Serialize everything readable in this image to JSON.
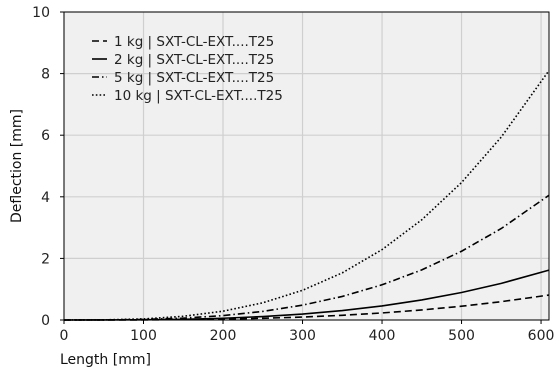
{
  "chart_data": {
    "type": "line",
    "title": "",
    "xlabel": "Length [mm]",
    "ylabel": "Deflection [mm]",
    "xlim": [
      0,
      610
    ],
    "ylim": [
      0,
      10
    ],
    "xticks": [
      0,
      100,
      200,
      300,
      400,
      500,
      600
    ],
    "yticks": [
      0,
      2,
      4,
      6,
      8,
      10
    ],
    "grid": true,
    "legend_position": "top-left",
    "x": [
      0,
      50,
      100,
      150,
      200,
      250,
      300,
      350,
      400,
      450,
      500,
      550,
      610
    ],
    "series": [
      {
        "name": "1 kg | SXT-CL-EXT....T25",
        "line_style": "dashed",
        "values": [
          0,
          0.0005,
          0.004,
          0.012,
          0.029,
          0.056,
          0.096,
          0.153,
          0.229,
          0.326,
          0.447,
          0.595,
          0.81
        ]
      },
      {
        "name": "2 kg | SXT-CL-EXT....T25",
        "line_style": "solid",
        "values": [
          0,
          0.0009,
          0.007,
          0.024,
          0.057,
          0.112,
          0.193,
          0.306,
          0.457,
          0.651,
          0.893,
          1.189,
          1.62
        ]
      },
      {
        "name": "5 kg | SXT-CL-EXT....T25",
        "line_style": "dashdot",
        "values": [
          0,
          0.0022,
          0.018,
          0.06,
          0.143,
          0.279,
          0.482,
          0.765,
          1.143,
          1.627,
          2.232,
          2.971,
          4.05
        ]
      },
      {
        "name": "10 kg | SXT-CL-EXT....T25",
        "line_style": "dotted",
        "values": [
          0,
          0.0044,
          0.036,
          0.12,
          0.286,
          0.558,
          0.964,
          1.531,
          2.285,
          3.254,
          4.463,
          5.941,
          8.1
        ]
      }
    ]
  },
  "colors": {
    "plot_background": "#f0f0f0",
    "grid": "#cfcfcf",
    "line": "#000000"
  }
}
